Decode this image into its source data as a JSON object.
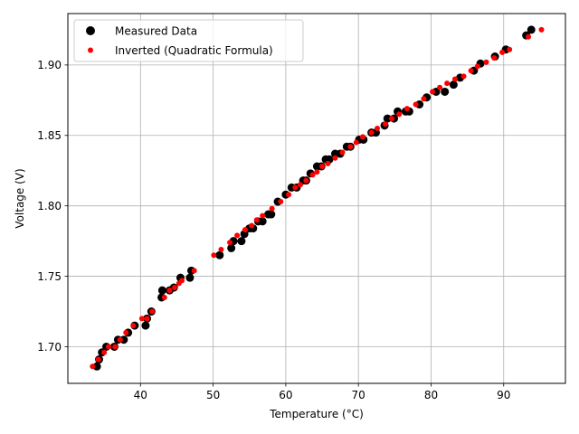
{
  "chart_data": {
    "type": "scatter",
    "xlabel": "Temperature (°C)",
    "ylabel": "Voltage (V)",
    "xlim": [
      30.0,
      98.5
    ],
    "ylim": [
      1.674,
      1.9365
    ],
    "xticks": [
      40,
      50,
      60,
      70,
      80,
      90
    ],
    "yticks": [
      1.7,
      1.75,
      1.8,
      1.85,
      1.9
    ],
    "xtick_labels": [
      "40",
      "50",
      "60",
      "70",
      "80",
      "90"
    ],
    "ytick_labels": [
      "1.70",
      "1.75",
      "1.80",
      "1.85",
      "1.90"
    ],
    "grid": true,
    "legend_position": "top-left",
    "series": [
      {
        "name": "Measured Data",
        "color": "#000000",
        "marker": "circle-large",
        "points": [
          [
            34.0,
            1.686
          ],
          [
            34.3,
            1.691
          ],
          [
            34.7,
            1.696
          ],
          [
            35.3,
            1.7
          ],
          [
            36.4,
            1.7
          ],
          [
            36.9,
            1.705
          ],
          [
            37.7,
            1.705
          ],
          [
            38.3,
            1.71
          ],
          [
            39.2,
            1.715
          ],
          [
            40.7,
            1.715
          ],
          [
            40.9,
            1.72
          ],
          [
            41.5,
            1.725
          ],
          [
            42.9,
            1.735
          ],
          [
            43.0,
            1.74
          ],
          [
            44.0,
            1.74
          ],
          [
            44.6,
            1.742
          ],
          [
            45.5,
            1.749
          ],
          [
            46.8,
            1.749
          ],
          [
            47.0,
            1.754
          ],
          [
            50.9,
            1.765
          ],
          [
            52.5,
            1.77
          ],
          [
            52.8,
            1.775
          ],
          [
            53.9,
            1.775
          ],
          [
            54.3,
            1.78
          ],
          [
            55.0,
            1.784
          ],
          [
            55.5,
            1.784
          ],
          [
            56.2,
            1.789
          ],
          [
            56.8,
            1.789
          ],
          [
            57.6,
            1.794
          ],
          [
            58.0,
            1.794
          ],
          [
            58.9,
            1.803
          ],
          [
            60.0,
            1.808
          ],
          [
            60.8,
            1.813
          ],
          [
            61.5,
            1.813
          ],
          [
            62.4,
            1.818
          ],
          [
            62.8,
            1.818
          ],
          [
            63.4,
            1.823
          ],
          [
            64.3,
            1.828
          ],
          [
            64.9,
            1.828
          ],
          [
            65.5,
            1.833
          ],
          [
            66.0,
            1.833
          ],
          [
            66.8,
            1.837
          ],
          [
            67.5,
            1.837
          ],
          [
            68.4,
            1.842
          ],
          [
            68.9,
            1.842
          ],
          [
            70.1,
            1.847
          ],
          [
            70.7,
            1.847
          ],
          [
            71.8,
            1.852
          ],
          [
            72.4,
            1.852
          ],
          [
            73.6,
            1.857
          ],
          [
            74.0,
            1.862
          ],
          [
            74.9,
            1.862
          ],
          [
            75.4,
            1.867
          ],
          [
            76.5,
            1.867
          ],
          [
            77.0,
            1.867
          ],
          [
            78.4,
            1.872
          ],
          [
            79.4,
            1.877
          ],
          [
            80.7,
            1.881
          ],
          [
            81.9,
            1.881
          ],
          [
            83.1,
            1.886
          ],
          [
            84.0,
            1.891
          ],
          [
            85.9,
            1.896
          ],
          [
            86.8,
            1.901
          ],
          [
            88.8,
            1.906
          ],
          [
            90.3,
            1.911
          ],
          [
            93.1,
            1.921
          ],
          [
            93.8,
            1.925
          ]
        ]
      },
      {
        "name": "Inverted (Quadratic Formula)",
        "color": "#ff0000",
        "marker": "circle-small",
        "points": [
          [
            33.4,
            1.686
          ],
          [
            34.2,
            1.691
          ],
          [
            35.0,
            1.696
          ],
          [
            35.6,
            1.7
          ],
          [
            36.5,
            1.7
          ],
          [
            37.2,
            1.705
          ],
          [
            38.0,
            1.71
          ],
          [
            39.0,
            1.715
          ],
          [
            40.2,
            1.72
          ],
          [
            40.9,
            1.72
          ],
          [
            41.6,
            1.725
          ],
          [
            43.3,
            1.735
          ],
          [
            44.0,
            1.74
          ],
          [
            44.7,
            1.742
          ],
          [
            45.3,
            1.745
          ],
          [
            45.7,
            1.747
          ],
          [
            47.4,
            1.754
          ],
          [
            50.1,
            1.765
          ],
          [
            51.1,
            1.769
          ],
          [
            52.3,
            1.774
          ],
          [
            53.3,
            1.779
          ],
          [
            54.4,
            1.783
          ],
          [
            55.3,
            1.786
          ],
          [
            56.0,
            1.79
          ],
          [
            56.8,
            1.793
          ],
          [
            58.1,
            1.798
          ],
          [
            59.3,
            1.803
          ],
          [
            60.4,
            1.808
          ],
          [
            61.3,
            1.813
          ],
          [
            62.0,
            1.815
          ],
          [
            62.8,
            1.818
          ],
          [
            63.7,
            1.822
          ],
          [
            64.3,
            1.824
          ],
          [
            65.0,
            1.828
          ],
          [
            65.8,
            1.83
          ],
          [
            66.8,
            1.834
          ],
          [
            67.8,
            1.838
          ],
          [
            68.9,
            1.842
          ],
          [
            69.7,
            1.845
          ],
          [
            70.6,
            1.849
          ],
          [
            71.8,
            1.852
          ],
          [
            72.6,
            1.855
          ],
          [
            73.7,
            1.858
          ],
          [
            74.6,
            1.862
          ],
          [
            75.6,
            1.865
          ],
          [
            76.7,
            1.869
          ],
          [
            77.9,
            1.872
          ],
          [
            79.0,
            1.876
          ],
          [
            80.2,
            1.881
          ],
          [
            81.2,
            1.884
          ],
          [
            82.2,
            1.887
          ],
          [
            83.3,
            1.89
          ],
          [
            84.5,
            1.892
          ],
          [
            85.5,
            1.896
          ],
          [
            86.4,
            1.899
          ],
          [
            87.6,
            1.902
          ],
          [
            88.7,
            1.905
          ],
          [
            89.8,
            1.909
          ],
          [
            90.8,
            1.911
          ],
          [
            93.4,
            1.92
          ],
          [
            95.2,
            1.925
          ]
        ]
      }
    ]
  }
}
